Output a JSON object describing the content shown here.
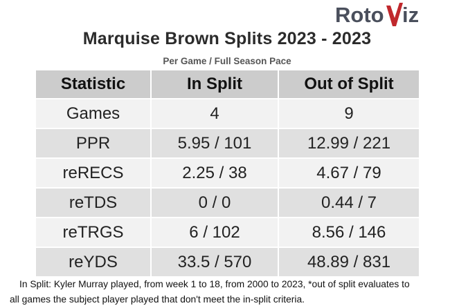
{
  "brand": {
    "logo_text_a": "Roto",
    "logo_text_b": "iz",
    "logo_color": "#4a4f5c",
    "accent": "#c0282d"
  },
  "title": "Marquise Brown Splits 2023 - 2023",
  "subtitle": "Per Game / Full Season Pace",
  "table": {
    "headers": [
      "Statistic",
      "In Split",
      "Out of Split"
    ],
    "rows": [
      [
        "Games",
        "4",
        "9"
      ],
      [
        "PPR",
        "5.95 / 101",
        "12.99 / 221"
      ],
      [
        "reRECS",
        "2.25 / 38",
        "4.67 / 79"
      ],
      [
        "reTDS",
        "0 / 0",
        "0.44 / 7"
      ],
      [
        "reTRGS",
        "6 / 102",
        "8.56 / 146"
      ],
      [
        "reYDS",
        "33.5 / 570",
        "48.89 / 831"
      ]
    ]
  },
  "footnote": {
    "line1": "In Split: Kyler Murray played, from week 1 to 18, from 2000 to 2023,  *out of split evaluates to",
    "line2": "all games the subject player played that don't meet the in-split criteria."
  }
}
